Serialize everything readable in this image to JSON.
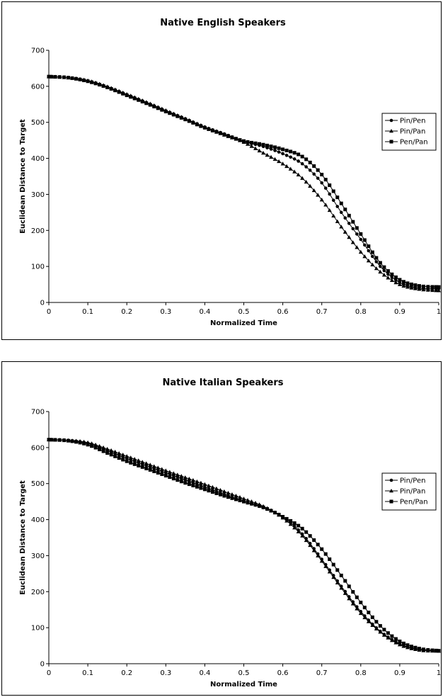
{
  "chart_data": [
    {
      "type": "line",
      "title": "Native English Speakers",
      "xlabel": "Normalized Time",
      "ylabel": "Euclidean Distance to Target",
      "xlim": [
        0,
        1
      ],
      "ylim": [
        0,
        700
      ],
      "xticks": [
        "0",
        "0.1",
        "0.2",
        "0.3",
        "0.4",
        "0.5",
        "0.6",
        "0.7",
        "0.8",
        "0.9",
        "1"
      ],
      "yticks": [
        "0",
        "100",
        "200",
        "300",
        "400",
        "500",
        "600",
        "700"
      ],
      "legend_position": "right",
      "grid": false,
      "x": [
        0,
        0.05,
        0.1,
        0.15,
        0.2,
        0.25,
        0.3,
        0.35,
        0.4,
        0.45,
        0.5,
        0.55,
        0.6,
        0.65,
        0.7,
        0.75,
        0.8,
        0.85,
        0.9,
        0.95,
        1
      ],
      "series": [
        {
          "name": "Pin/Pen",
          "marker": "circle",
          "values": [
            627,
            624,
            615,
            598,
            577,
            555,
            532,
            510,
            487,
            468,
            447,
            433,
            413,
            385,
            332,
            250,
            175,
            100,
            55,
            40,
            38
          ]
        },
        {
          "name": "Pin/Pan",
          "marker": "triangle",
          "values": [
            627,
            624,
            616,
            599,
            578,
            556,
            533,
            510,
            487,
            465,
            445,
            415,
            385,
            345,
            285,
            210,
            140,
            85,
            50,
            37,
            33
          ]
        },
        {
          "name": "Pen/Pan",
          "marker": "square",
          "values": [
            627,
            624,
            614,
            597,
            575,
            553,
            530,
            508,
            485,
            466,
            448,
            438,
            425,
            405,
            355,
            275,
            190,
            110,
            63,
            46,
            43
          ]
        }
      ]
    },
    {
      "type": "line",
      "title": "Native Italian Speakers",
      "xlabel": "Normalized Time",
      "ylabel": "Euclidean Distance to Target",
      "xlim": [
        0,
        1
      ],
      "ylim": [
        0,
        700
      ],
      "xticks": [
        "0",
        "0.1",
        "0.2",
        "0.3",
        "0.4",
        "0.5",
        "0.6",
        "0.7",
        "0.8",
        "0.9",
        "1"
      ],
      "yticks": [
        "0",
        "100",
        "200",
        "300",
        "400",
        "500",
        "600",
        "700"
      ],
      "legend_position": "right",
      "grid": false,
      "x": [
        0,
        0.05,
        0.1,
        0.15,
        0.2,
        0.25,
        0.3,
        0.35,
        0.4,
        0.45,
        0.5,
        0.55,
        0.6,
        0.65,
        0.7,
        0.75,
        0.8,
        0.85,
        0.9,
        0.95,
        1
      ],
      "series": [
        {
          "name": "Pin/Pen",
          "marker": "circle",
          "values": [
            622,
            620,
            612,
            592,
            570,
            550,
            530,
            510,
            490,
            470,
            450,
            433,
            408,
            360,
            290,
            215,
            145,
            90,
            55,
            39,
            36
          ]
        },
        {
          "name": "Pin/Pan",
          "marker": "triangle",
          "values": [
            622,
            620,
            614,
            596,
            576,
            556,
            536,
            517,
            498,
            478,
            458,
            437,
            405,
            355,
            285,
            210,
            140,
            88,
            53,
            38,
            35
          ]
        },
        {
          "name": "Pen/Pan",
          "marker": "square",
          "values": [
            622,
            619,
            608,
            585,
            562,
            542,
            522,
            502,
            484,
            466,
            450,
            434,
            408,
            375,
            318,
            245,
            170,
            105,
            62,
            42,
            36
          ]
        }
      ]
    }
  ]
}
